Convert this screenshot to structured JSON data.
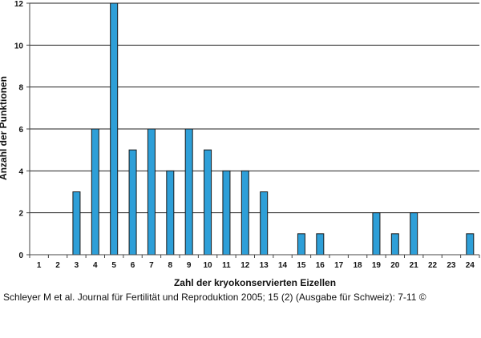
{
  "chart_data": {
    "type": "bar",
    "categories": [
      "1",
      "2",
      "3",
      "4",
      "5",
      "6",
      "7",
      "8",
      "9",
      "10",
      "11",
      "12",
      "13",
      "14",
      "15",
      "16",
      "17",
      "18",
      "19",
      "20",
      "21",
      "22",
      "23",
      "24"
    ],
    "values": [
      0,
      0,
      3,
      6,
      12,
      5,
      6,
      4,
      6,
      5,
      4,
      4,
      3,
      0,
      1,
      1,
      0,
      0,
      2,
      1,
      2,
      0,
      0,
      1
    ],
    "xlabel": "Zahl der kryokonservierten Eizellen",
    "ylabel": "Anzahl der Punktionen",
    "ylim": [
      0,
      12
    ],
    "yticks": [
      0,
      2,
      4,
      6,
      8,
      10,
      12
    ],
    "grid": true,
    "bar_color": "#2e9fd8",
    "bar_edge_color": "#1a1a1a"
  },
  "caption": "Schleyer M et al. Journal für Fertilität und Reproduktion 2005; 15 (2) (Ausgabe für Schweiz): 7-11 ©"
}
